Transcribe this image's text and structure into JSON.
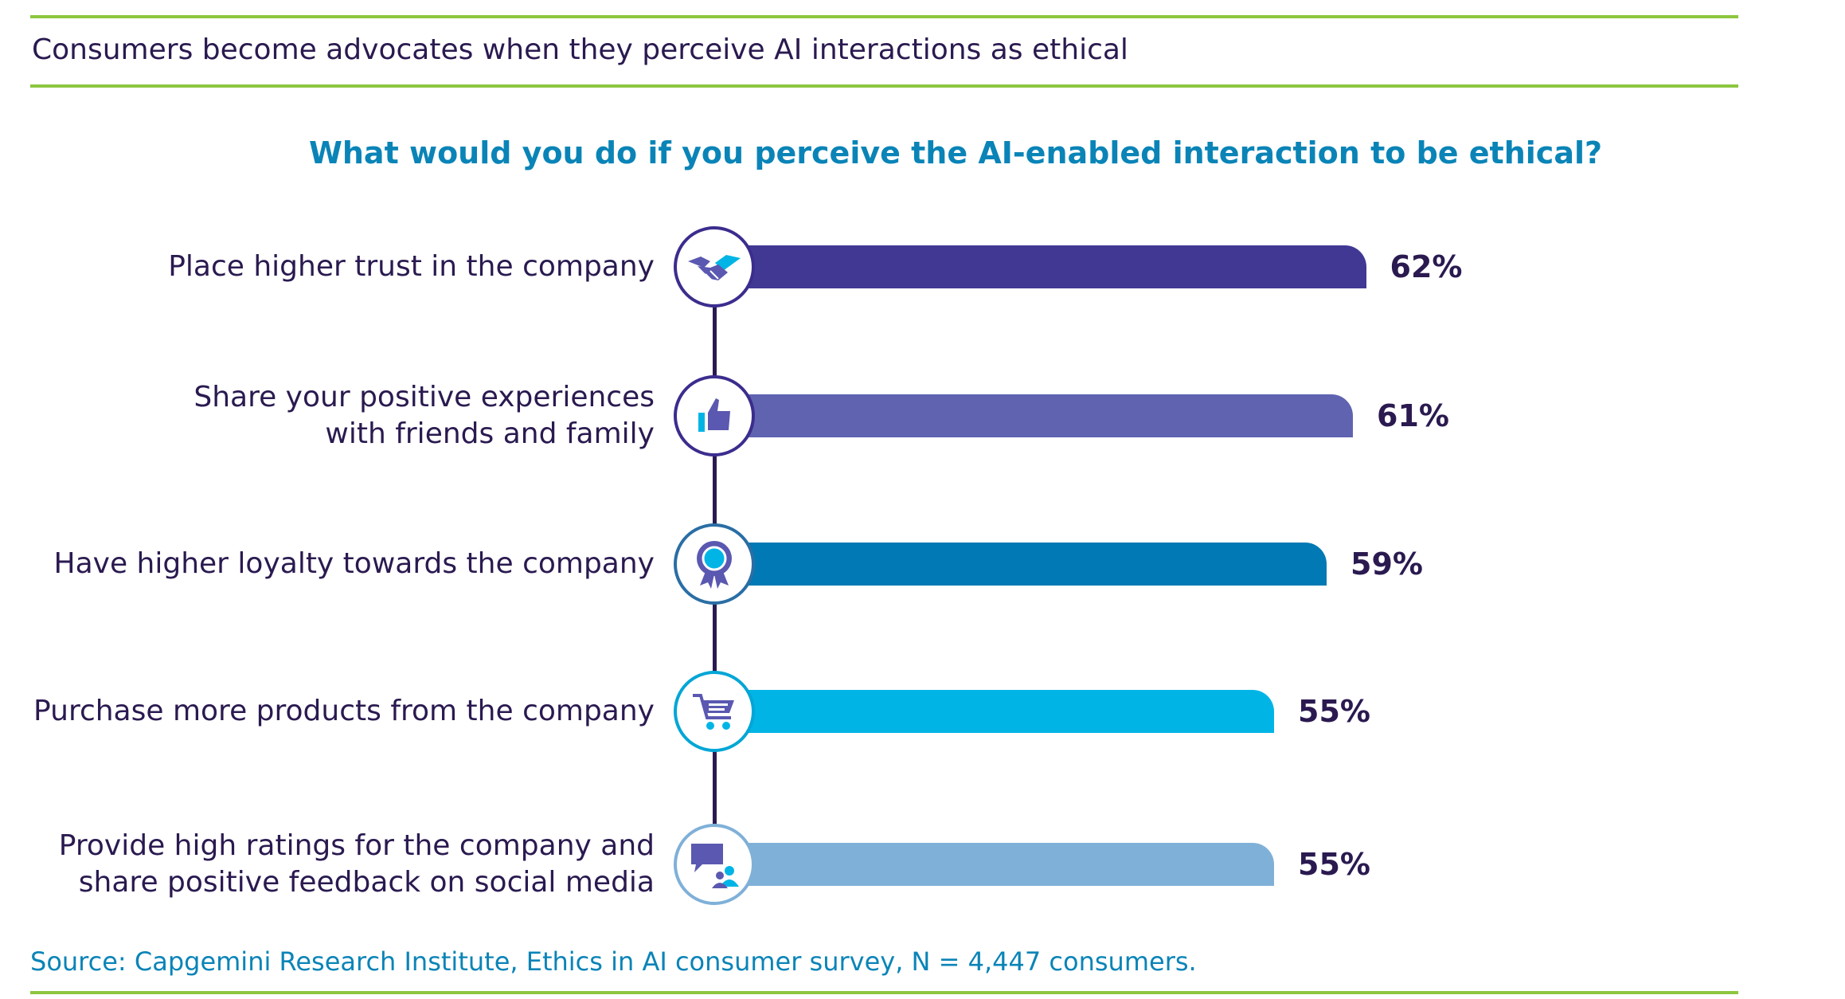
{
  "header": {
    "title": "Consumers become advocates when they perceive AI interactions as ethical"
  },
  "source": "Source: Capgemini Research Institute, Ethics in AI consumer survey, N = 4,447 consumers.",
  "chart_data": {
    "type": "bar",
    "orientation": "horizontal",
    "title": "What would you do if you perceive the AI-enabled interaction to be ethical?",
    "xlabel": "",
    "ylabel": "",
    "xlim": [
      0,
      100
    ],
    "categories": [
      {
        "lines": [
          "Place higher trust in the company"
        ],
        "value_label": "62%",
        "icon": "handshake-icon"
      },
      {
        "lines": [
          "Share your positive experiences",
          "with friends and family"
        ],
        "value_label": "61%",
        "icon": "thumbs-up-icon"
      },
      {
        "lines": [
          "Have higher loyalty towards the company"
        ],
        "value_label": "59%",
        "icon": "award-ribbon-icon"
      },
      {
        "lines": [
          "Purchase more products from the company"
        ],
        "value_label": "55%",
        "icon": "shopping-cart-icon"
      },
      {
        "lines": [
          "Provide high ratings for the company and",
          "share positive feedback on social media"
        ],
        "value_label": "55%",
        "icon": "chat-user-icon"
      }
    ],
    "values": [
      62,
      61,
      59,
      55,
      55
    ],
    "colors": [
      "#413894",
      "#5f63b0",
      "#0079b4",
      "#00b5e5",
      "#7fb0d8"
    ],
    "icon_border_colors": [
      "#3b2d8e",
      "#3b2d8e",
      "#2a6ea5",
      "#00a6d6",
      "#7fb0d8"
    ]
  }
}
